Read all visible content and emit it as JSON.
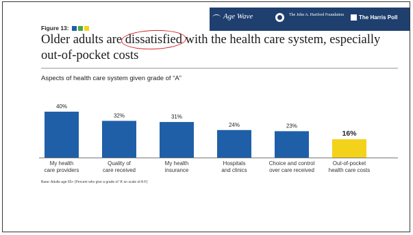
{
  "banner": {
    "logos": [
      {
        "name": "Age Wave",
        "icon": "wave-icon"
      },
      {
        "name": "The John A. Hartford Foundation",
        "icon": "seal-icon"
      },
      {
        "name": "The Harris Poll",
        "icon": "harris-logo-icon"
      }
    ],
    "background_color": "#1f3f6e"
  },
  "figure_label": "Figure 13:",
  "figure_squares": [
    "#1f5fa8",
    "#49a942",
    "#f3d21b"
  ],
  "headline": {
    "before": "Older adults are ",
    "circled": "dissatisfied",
    "after": " with the health care system, especially out-of-pocket costs"
  },
  "annotation_color": "#d22027",
  "chart_data": {
    "type": "bar",
    "title": "Aspects of health care system given grade of “A”",
    "categories": [
      "My health care providers",
      "Quality of care received",
      "My health insurance",
      "Hospitals and clinics",
      "Choice and control over care received",
      "Out-of-pocket health care costs"
    ],
    "category_lines": [
      [
        "My health",
        "care providers"
      ],
      [
        "Quality of",
        "care received"
      ],
      [
        "My health",
        "insurance"
      ],
      [
        "Hospitals",
        "and clinics"
      ],
      [
        "Choice and control",
        "over care received"
      ],
      [
        "Out-of-pocket",
        "health care costs"
      ]
    ],
    "values": [
      40,
      32,
      31,
      24,
      23,
      16
    ],
    "value_labels": [
      "40%",
      "32%",
      "31%",
      "24%",
      "23%",
      "16%"
    ],
    "colors": [
      "#1f5fa8",
      "#1f5fa8",
      "#1f5fa8",
      "#1f5fa8",
      "#1f5fa8",
      "#f3d21b"
    ],
    "highlight_index": 5,
    "ylim": [
      0,
      40
    ],
    "xlabel": "",
    "ylabel": "",
    "grid": false,
    "legend": "none"
  },
  "footnote": "Base: Adults age 65+ (Percent who give a grade of ‘A’ on scale of A-F)"
}
